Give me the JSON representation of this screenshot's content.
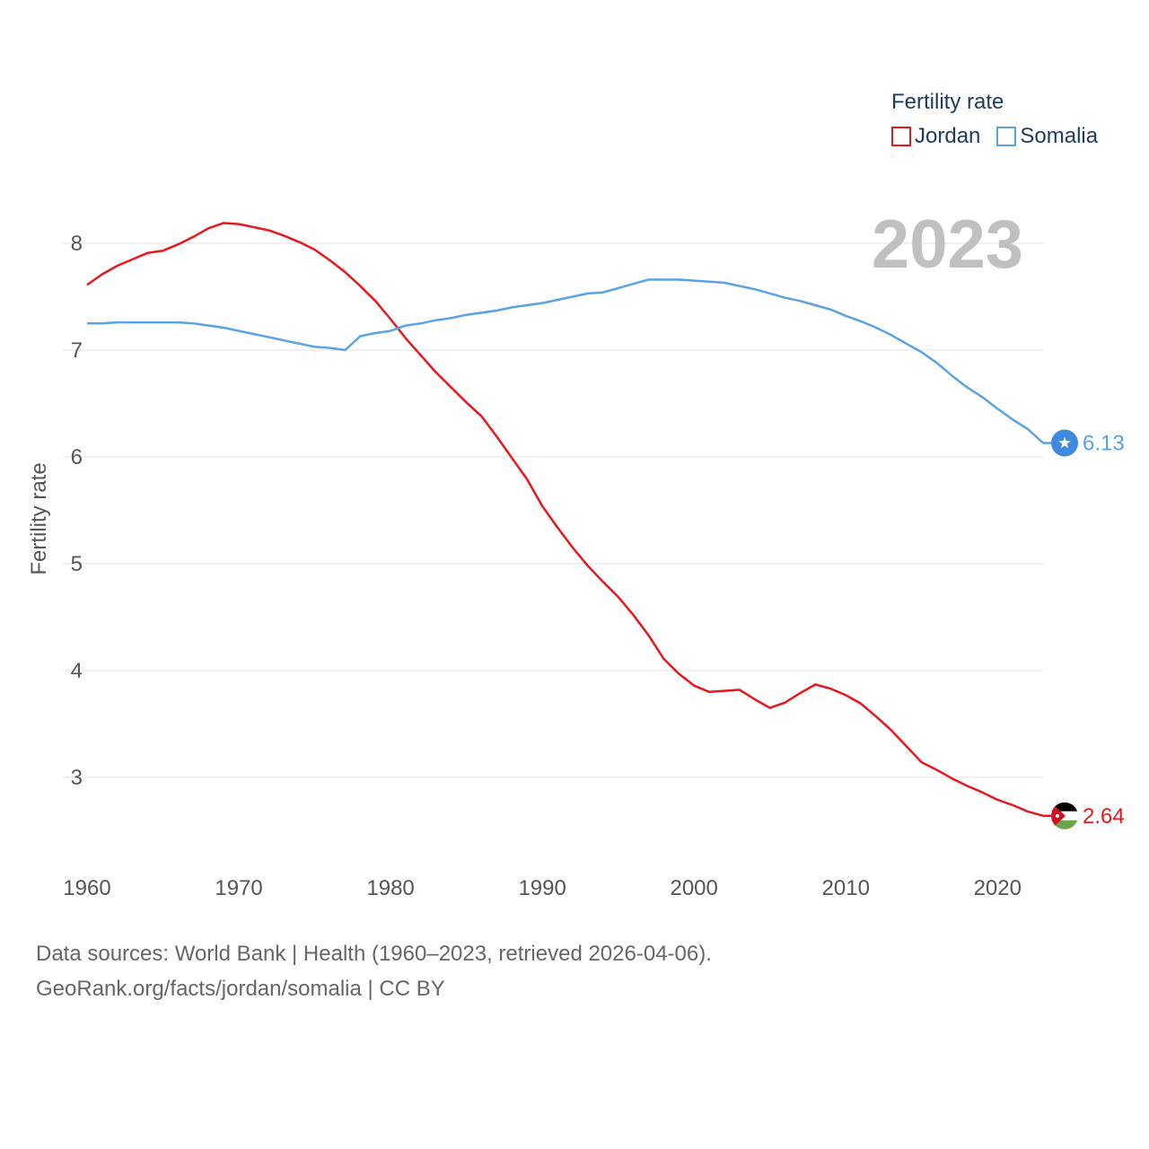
{
  "chart_data": {
    "type": "line",
    "title": "Fertility rate",
    "year_label": "2023",
    "ylabel": "Fertility rate",
    "xlabel": "",
    "xlim": [
      1960,
      2023
    ],
    "ylim": [
      2.3,
      8.4
    ],
    "yticks": [
      3,
      4,
      5,
      6,
      7,
      8
    ],
    "xticks": [
      1960,
      1970,
      1980,
      1990,
      2000,
      2010,
      2020
    ],
    "grid": true,
    "legend_placement": "top-right",
    "series": [
      {
        "name": "Jordan",
        "color": "#e8171d",
        "end_label": "2.64",
        "flag": "jordan-flag",
        "x": [
          1960,
          1961,
          1962,
          1963,
          1964,
          1965,
          1966,
          1967,
          1968,
          1969,
          1970,
          1971,
          1972,
          1973,
          1974,
          1975,
          1976,
          1977,
          1978,
          1979,
          1980,
          1981,
          1982,
          1983,
          1984,
          1985,
          1986,
          1987,
          1988,
          1989,
          1990,
          1991,
          1992,
          1993,
          1994,
          1995,
          1996,
          1997,
          1998,
          1999,
          2000,
          2001,
          2002,
          2003,
          2004,
          2005,
          2006,
          2007,
          2008,
          2009,
          2010,
          2011,
          2012,
          2013,
          2014,
          2015,
          2016,
          2017,
          2018,
          2019,
          2020,
          2021,
          2022,
          2023
        ],
        "values": [
          7.61,
          7.71,
          7.79,
          7.85,
          7.91,
          7.93,
          7.99,
          8.06,
          8.14,
          8.19,
          8.18,
          8.15,
          8.12,
          8.07,
          8.01,
          7.94,
          7.84,
          7.73,
          7.6,
          7.46,
          7.29,
          7.11,
          6.95,
          6.79,
          6.65,
          6.51,
          6.38,
          6.19,
          5.99,
          5.79,
          5.54,
          5.34,
          5.15,
          4.98,
          4.83,
          4.69,
          4.52,
          4.33,
          4.11,
          3.97,
          3.86,
          3.8,
          3.81,
          3.82,
          3.73,
          3.65,
          3.7,
          3.79,
          3.87,
          3.83,
          3.77,
          3.69,
          3.57,
          3.44,
          3.29,
          3.14,
          3.07,
          2.99,
          2.92,
          2.86,
          2.79,
          2.74,
          2.68,
          2.64
        ]
      },
      {
        "name": "Somalia",
        "color": "#5aa2e6",
        "end_label": "6.13",
        "flag": "somalia-flag",
        "x": [
          1960,
          1961,
          1962,
          1963,
          1964,
          1965,
          1966,
          1967,
          1968,
          1969,
          1970,
          1971,
          1972,
          1973,
          1974,
          1975,
          1976,
          1977,
          1978,
          1979,
          1980,
          1981,
          1982,
          1983,
          1984,
          1985,
          1986,
          1987,
          1988,
          1989,
          1990,
          1991,
          1992,
          1993,
          1994,
          1995,
          1996,
          1997,
          1998,
          1999,
          2000,
          2001,
          2002,
          2003,
          2004,
          2005,
          2006,
          2007,
          2008,
          2009,
          2010,
          2011,
          2012,
          2013,
          2014,
          2015,
          2016,
          2017,
          2018,
          2019,
          2020,
          2021,
          2022,
          2023
        ],
        "values": [
          7.25,
          7.25,
          7.26,
          7.26,
          7.26,
          7.26,
          7.26,
          7.25,
          7.23,
          7.21,
          7.18,
          7.15,
          7.12,
          7.09,
          7.06,
          7.03,
          7.02,
          7.0,
          7.13,
          7.16,
          7.18,
          7.23,
          7.25,
          7.28,
          7.3,
          7.33,
          7.35,
          7.37,
          7.4,
          7.42,
          7.44,
          7.47,
          7.5,
          7.53,
          7.54,
          7.58,
          7.62,
          7.66,
          7.66,
          7.66,
          7.65,
          7.64,
          7.63,
          7.6,
          7.57,
          7.53,
          7.49,
          7.46,
          7.42,
          7.38,
          7.32,
          7.27,
          7.21,
          7.14,
          7.06,
          6.98,
          6.88,
          6.76,
          6.65,
          6.56,
          6.45,
          6.35,
          6.26,
          6.13
        ]
      }
    ]
  },
  "footer": {
    "line1": "Data sources: World Bank | Health (1960–2023, retrieved 2026-04-06).",
    "line2": "GeoRank.org/facts/jordan/somalia | CC BY"
  }
}
